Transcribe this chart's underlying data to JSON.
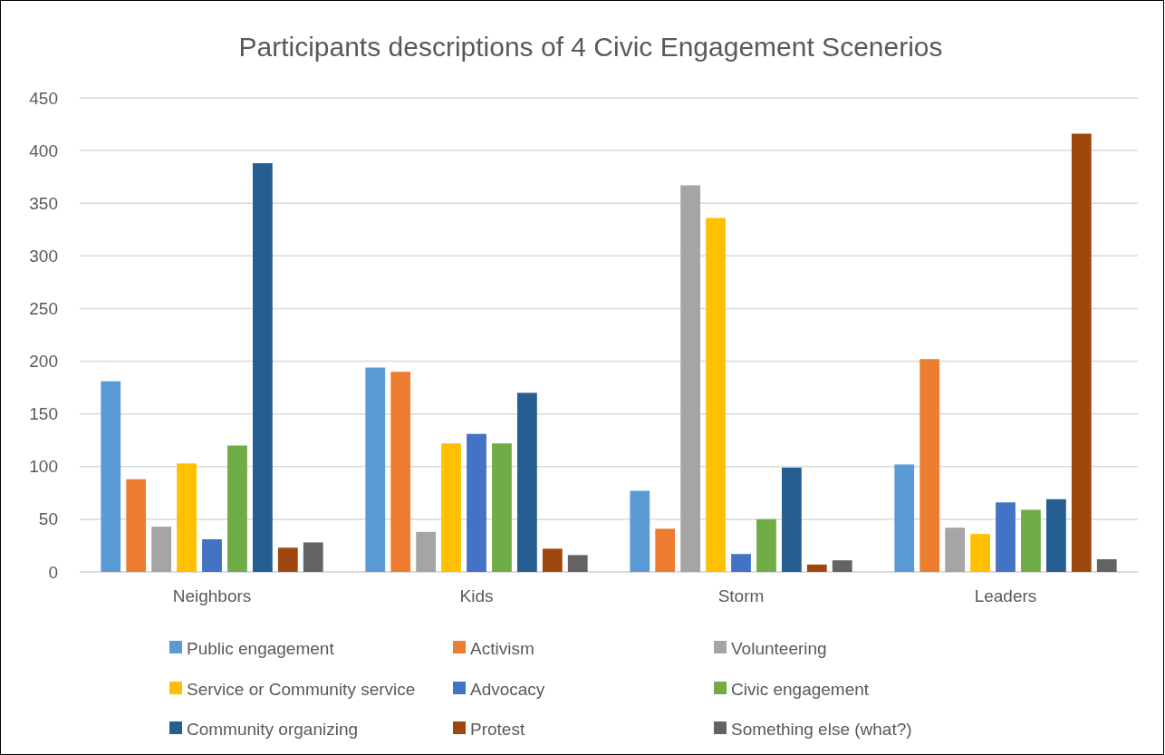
{
  "chart_data": {
    "type": "bar",
    "title": "Participants descriptions of 4 Civic Engagement Scenerios",
    "categories": [
      "Neighbors",
      "Kids",
      "Storm",
      "Leaders"
    ],
    "series": [
      {
        "name": "Public engagement",
        "color": "#5b9bd5",
        "values": [
          181,
          194,
          77,
          102
        ]
      },
      {
        "name": "Activism",
        "color": "#ed7d31",
        "values": [
          88,
          190,
          41,
          202
        ]
      },
      {
        "name": "Volunteering",
        "color": "#a5a5a5",
        "values": [
          43,
          38,
          367,
          42
        ]
      },
      {
        "name": "Service or Community service",
        "color": "#ffc000",
        "values": [
          103,
          122,
          336,
          36
        ]
      },
      {
        "name": "Advocacy",
        "color": "#4472c4",
        "values": [
          31,
          131,
          17,
          66
        ]
      },
      {
        "name": "Civic engagement",
        "color": "#70ad47",
        "values": [
          120,
          122,
          50,
          59
        ]
      },
      {
        "name": "Community organizing",
        "color": "#255e91",
        "values": [
          388,
          170,
          99,
          69
        ]
      },
      {
        "name": "Protest",
        "color": "#9e480e",
        "values": [
          23,
          22,
          7,
          416
        ]
      },
      {
        "name": "Something else (what?)",
        "color": "#636363",
        "values": [
          28,
          16,
          11,
          12
        ]
      }
    ],
    "ylim": [
      0,
      450
    ],
    "yticks": [
      0,
      50,
      100,
      150,
      200,
      250,
      300,
      350,
      400,
      450
    ],
    "grid": "y",
    "legend": "bottom"
  }
}
